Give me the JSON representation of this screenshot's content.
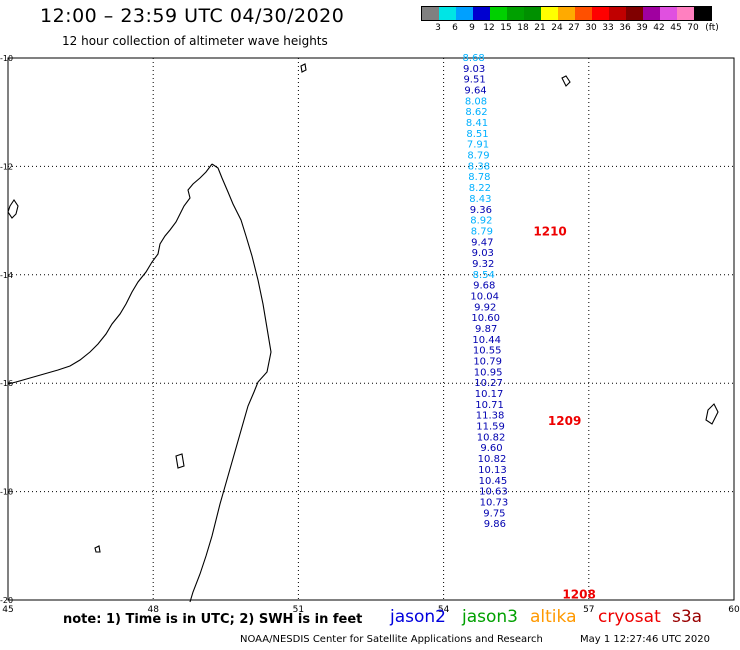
{
  "header": {
    "title": "12:00 – 23:59 UTC 04/30/2020",
    "subtitle": "12 hour collection of altimeter wave heights"
  },
  "legend": {
    "colors": [
      "#808080",
      "#00e5e5",
      "#00a0ff",
      "#0000d0",
      "#00d000",
      "#00a000",
      "#009000",
      "#ffff00",
      "#ffaa00",
      "#ff5000",
      "#ff0000",
      "#c00000",
      "#800000",
      "#a000a0",
      "#e050e0",
      "#ff80c0",
      "#000000"
    ],
    "labels": [
      "3",
      "6",
      "9",
      "12",
      "15",
      "18",
      "21",
      "24",
      "27",
      "30",
      "33",
      "36",
      "39",
      "42",
      "45",
      "70",
      "(ft)"
    ]
  },
  "map": {
    "lon_labels": [
      "45",
      "48",
      "51",
      "54",
      "57",
      "60"
    ],
    "lat_labels": [
      "-10",
      "-12",
      "-14",
      "-16",
      "-18",
      "-20"
    ],
    "time_labels": [
      {
        "text": "1210",
        "lon": 56.2,
        "lat": -13.2
      },
      {
        "text": "1209",
        "lon": 56.5,
        "lat": -16.7
      },
      {
        "text": "1208",
        "lon": 56.8,
        "lat": -19.9
      }
    ],
    "track": [
      {
        "lat": -10.0,
        "lon": 54.62,
        "swh": "8.68",
        "color": "#00b0ff"
      },
      {
        "lat": -10.2,
        "lon": 54.63,
        "swh": "9.03",
        "color": "#0000b0"
      },
      {
        "lat": -10.4,
        "lon": 54.64,
        "swh": "9.51",
        "color": "#0000b0"
      },
      {
        "lat": -10.6,
        "lon": 54.66,
        "swh": "9.64",
        "color": "#0000b0"
      },
      {
        "lat": -10.8,
        "lon": 54.67,
        "swh": "8.08",
        "color": "#00b0ff"
      },
      {
        "lat": -11.0,
        "lon": 54.68,
        "swh": "8.62",
        "color": "#00b0ff"
      },
      {
        "lat": -11.2,
        "lon": 54.69,
        "swh": "8.41",
        "color": "#00b0ff"
      },
      {
        "lat": -11.4,
        "lon": 54.7,
        "swh": "8.51",
        "color": "#00b0ff"
      },
      {
        "lat": -11.6,
        "lon": 54.71,
        "swh": "7.91",
        "color": "#00b0ff"
      },
      {
        "lat": -11.8,
        "lon": 54.72,
        "swh": "8.79",
        "color": "#00b0ff"
      },
      {
        "lat": -12.0,
        "lon": 54.73,
        "swh": "8.38",
        "color": "#00b0ff"
      },
      {
        "lat": -12.2,
        "lon": 54.74,
        "swh": "8.78",
        "color": "#00b0ff"
      },
      {
        "lat": -12.4,
        "lon": 54.75,
        "swh": "8.22",
        "color": "#00b0ff"
      },
      {
        "lat": -12.6,
        "lon": 54.76,
        "swh": "8.43",
        "color": "#00b0ff"
      },
      {
        "lat": -12.8,
        "lon": 54.77,
        "swh": "9.36",
        "color": "#0000b0"
      },
      {
        "lat": -13.0,
        "lon": 54.78,
        "swh": "8.92",
        "color": "#00b0ff"
      },
      {
        "lat": -13.2,
        "lon": 54.79,
        "swh": "8.79",
        "color": "#00b0ff"
      },
      {
        "lat": -13.4,
        "lon": 54.8,
        "swh": "9.47",
        "color": "#0000b0"
      },
      {
        "lat": -13.6,
        "lon": 54.81,
        "swh": "9.03",
        "color": "#0000b0"
      },
      {
        "lat": -13.8,
        "lon": 54.82,
        "swh": "9.32",
        "color": "#0000b0"
      },
      {
        "lat": -14.0,
        "lon": 54.83,
        "swh": "8.54",
        "color": "#00b0ff"
      },
      {
        "lat": -14.2,
        "lon": 54.84,
        "swh": "9.68",
        "color": "#0000b0"
      },
      {
        "lat": -14.4,
        "lon": 54.85,
        "swh": "10.04",
        "color": "#0000b0"
      },
      {
        "lat": -14.6,
        "lon": 54.86,
        "swh": "9.92",
        "color": "#0000b0"
      },
      {
        "lat": -14.8,
        "lon": 54.87,
        "swh": "10.60",
        "color": "#0000b0"
      },
      {
        "lat": -15.0,
        "lon": 54.88,
        "swh": "9.87",
        "color": "#0000b0"
      },
      {
        "lat": -15.2,
        "lon": 54.89,
        "swh": "10.44",
        "color": "#0000b0"
      },
      {
        "lat": -15.4,
        "lon": 54.9,
        "swh": "10.55",
        "color": "#0000b0"
      },
      {
        "lat": -15.6,
        "lon": 54.91,
        "swh": "10.79",
        "color": "#0000b0"
      },
      {
        "lat": -15.8,
        "lon": 54.92,
        "swh": "10.95",
        "color": "#0000b0"
      },
      {
        "lat": -16.0,
        "lon": 54.93,
        "swh": "10.27",
        "color": "#0000b0"
      },
      {
        "lat": -16.2,
        "lon": 54.94,
        "swh": "10.17",
        "color": "#0000b0"
      },
      {
        "lat": -16.4,
        "lon": 54.95,
        "swh": "10.71",
        "color": "#0000b0"
      },
      {
        "lat": -16.6,
        "lon": 54.96,
        "swh": "11.38",
        "color": "#0000b0"
      },
      {
        "lat": -16.8,
        "lon": 54.97,
        "swh": "11.59",
        "color": "#0000b0"
      },
      {
        "lat": -17.0,
        "lon": 54.98,
        "swh": "10.82",
        "color": "#0000b0"
      },
      {
        "lat": -17.2,
        "lon": 54.99,
        "swh": "9.60",
        "color": "#0000b0"
      },
      {
        "lat": -17.4,
        "lon": 55.0,
        "swh": "10.82",
        "color": "#0000b0"
      },
      {
        "lat": -17.6,
        "lon": 55.01,
        "swh": "10.13",
        "color": "#0000b0"
      },
      {
        "lat": -17.8,
        "lon": 55.02,
        "swh": "10.45",
        "color": "#0000b0"
      },
      {
        "lat": -18.0,
        "lon": 55.03,
        "swh": "10.63",
        "color": "#0000b0"
      },
      {
        "lat": -18.2,
        "lon": 55.04,
        "swh": "10.73",
        "color": "#0000b0"
      },
      {
        "lat": -18.4,
        "lon": 55.05,
        "swh": "9.75",
        "color": "#0000b0"
      },
      {
        "lat": -18.6,
        "lon": 55.06,
        "swh": "9.86",
        "color": "#0000b0"
      }
    ]
  },
  "footer": {
    "note": "note: 1) Time is in UTC; 2) SWH is in feet",
    "satellites": [
      {
        "name": "jason2",
        "color": "#0000dd"
      },
      {
        "name": "jason3",
        "color": "#00a000"
      },
      {
        "name": "altika",
        "color": "#ff9900"
      },
      {
        "name": "cryosat",
        "color": "#ee0000"
      },
      {
        "name": "s3a",
        "color": "#990000"
      }
    ],
    "credit": "NOAA/NESDIS Center for Satellite Applications and Research",
    "timestamp": "May  1 12:27:46 UTC 2020"
  }
}
